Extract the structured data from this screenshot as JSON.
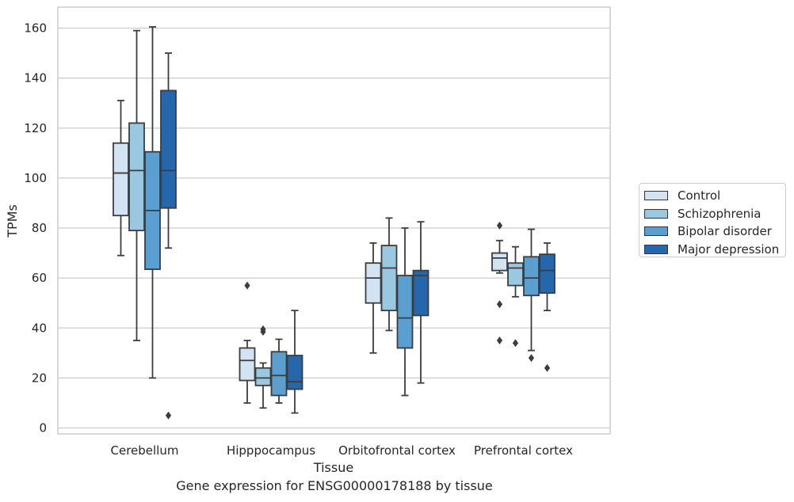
{
  "caption": "Gene expression for ENSG00000178188 by tissue",
  "chart_data": {
    "type": "boxplot",
    "xlabel": "Tissue",
    "ylabel": "TPMs",
    "ylim": [
      -2,
      168
    ],
    "yticks": [
      0,
      20,
      40,
      60,
      80,
      100,
      120,
      140,
      160
    ],
    "grid": true,
    "legend_position": "right",
    "categories": [
      "Cerebellum",
      "Hipppocampus",
      "Orbitofrontal cortex",
      "Prefrontal cortex"
    ],
    "series": [
      {
        "name": "Control",
        "color": "#d2e3f3",
        "boxes": [
          {
            "whisker_low": 69,
            "q1": 85,
            "median": 102,
            "q3": 114,
            "whisker_high": 131,
            "outliers": []
          },
          {
            "whisker_low": 10,
            "q1": 19,
            "median": 27,
            "q3": 32,
            "whisker_high": 35,
            "outliers": [
              57
            ]
          },
          {
            "whisker_low": 30,
            "q1": 50,
            "median": 60,
            "q3": 66,
            "whisker_high": 74,
            "outliers": []
          },
          {
            "whisker_low": 62,
            "q1": 63,
            "median": 68,
            "q3": 70,
            "whisker_high": 75,
            "outliers": [
              81,
              49.5,
              35
            ]
          }
        ]
      },
      {
        "name": "Schizophrenia",
        "color": "#9ac8e0",
        "boxes": [
          {
            "whisker_low": 35,
            "q1": 79,
            "median": 103,
            "q3": 122,
            "whisker_high": 159,
            "outliers": []
          },
          {
            "whisker_low": 8,
            "q1": 17,
            "median": 20,
            "q3": 24,
            "whisker_high": 26,
            "outliers": [
              39.5,
              38.5
            ]
          },
          {
            "whisker_low": 39,
            "q1": 47,
            "median": 64,
            "q3": 73,
            "whisker_high": 84,
            "outliers": []
          },
          {
            "whisker_low": 52.5,
            "q1": 57,
            "median": 64,
            "q3": 66,
            "whisker_high": 72.5,
            "outliers": [
              34
            ]
          }
        ]
      },
      {
        "name": "Bipolar disorder",
        "color": "#5a9fcf",
        "boxes": [
          {
            "whisker_low": 20,
            "q1": 63.5,
            "median": 87,
            "q3": 110.5,
            "whisker_high": 160.5,
            "outliers": []
          },
          {
            "whisker_low": 10,
            "q1": 13,
            "median": 21,
            "q3": 30.5,
            "whisker_high": 35.5,
            "outliers": []
          },
          {
            "whisker_low": 13,
            "q1": 32,
            "median": 44,
            "q3": 61,
            "whisker_high": 80,
            "outliers": []
          },
          {
            "whisker_low": 31,
            "q1": 53,
            "median": 60,
            "q3": 68.5,
            "whisker_high": 79.5,
            "outliers": [
              28
            ]
          }
        ]
      },
      {
        "name": "Major depression",
        "color": "#2666ab",
        "boxes": [
          {
            "whisker_low": 72,
            "q1": 88,
            "median": 103,
            "q3": 135,
            "whisker_high": 150,
            "outliers": [
              5
            ]
          },
          {
            "whisker_low": 6,
            "q1": 15.5,
            "median": 18.5,
            "q3": 29,
            "whisker_high": 47,
            "outliers": []
          },
          {
            "whisker_low": 18,
            "q1": 45,
            "median": 61,
            "q3": 63,
            "whisker_high": 82.5,
            "outliers": []
          },
          {
            "whisker_low": 47,
            "q1": 54,
            "median": 63,
            "q3": 69.5,
            "whisker_high": 74,
            "outliers": [
              24
            ]
          }
        ]
      }
    ]
  }
}
